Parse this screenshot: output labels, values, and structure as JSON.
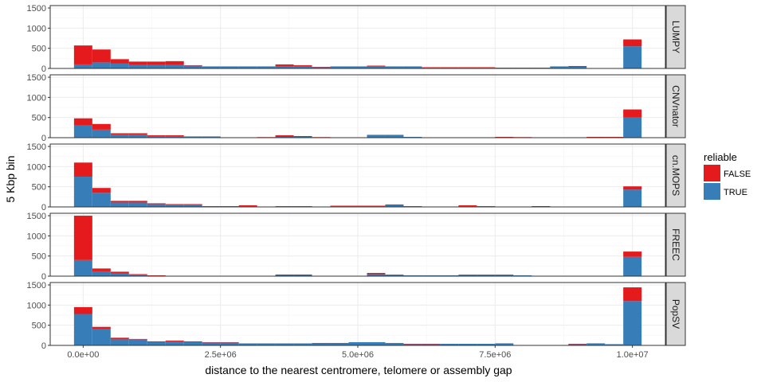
{
  "chart_data": {
    "type": "bar",
    "subtype": "faceted stacked histogram",
    "xlabel": "distance to the nearest centromere, telomere or assembly gap",
    "ylabel": "5 Kbp bin",
    "x_ticks": [
      0,
      2500000,
      5000000,
      7500000,
      10000000
    ],
    "x_tick_labels": [
      "0.0e+00",
      "2.5e+06",
      "5.0e+06",
      "7.5e+06",
      "1.0e+07"
    ],
    "xlim": [
      -600000,
      10600000
    ],
    "ylim": [
      0,
      1560
    ],
    "y_ticks": [
      0,
      500,
      1000,
      1500
    ],
    "y_tick_labels": [
      "0",
      "500",
      "1000",
      "1500"
    ],
    "grid": true,
    "bin_starts": [
      -166667,
      166667,
      500000,
      833333,
      1166667,
      1500000,
      1833333,
      2166667,
      2500000,
      2833333,
      3166667,
      3500000,
      3833333,
      4166667,
      4500000,
      4833333,
      5166667,
      5500000,
      5833333,
      6166667,
      6500000,
      6833333,
      7166667,
      7500000,
      7833333,
      8166667,
      8500000,
      8833333,
      9166667,
      9500000,
      9833333
    ],
    "bin_width": 333333,
    "legend": {
      "title": "reliable",
      "position": "right",
      "entries": [
        {
          "label": "FALSE",
          "color": "#e41a1c"
        },
        {
          "label": "TRUE",
          "color": "#377eb8"
        }
      ]
    },
    "facets": [
      {
        "name": "LUMPY",
        "true_values": [
          100,
          150,
          120,
          90,
          90,
          90,
          70,
          40,
          40,
          40,
          40,
          60,
          60,
          30,
          40,
          40,
          60,
          40,
          40,
          20,
          20,
          20,
          20,
          20,
          20,
          20,
          40,
          40,
          0,
          0,
          550
        ],
        "false_values": [
          470,
          320,
          110,
          80,
          80,
          90,
          10,
          10,
          10,
          10,
          10,
          40,
          20,
          10,
          10,
          10,
          10,
          10,
          10,
          10,
          10,
          10,
          10,
          0,
          0,
          0,
          10,
          20,
          0,
          0,
          170
        ]
      },
      {
        "name": "CNVnator",
        "true_values": [
          300,
          200,
          80,
          80,
          40,
          40,
          20,
          20,
          5,
          5,
          10,
          20,
          20,
          10,
          10,
          10,
          60,
          60,
          20,
          0,
          0,
          0,
          0,
          10,
          10,
          0,
          0,
          5,
          10,
          10,
          500
        ],
        "false_values": [
          180,
          140,
          30,
          30,
          20,
          20,
          10,
          10,
          5,
          5,
          5,
          40,
          20,
          5,
          0,
          0,
          10,
          10,
          0,
          0,
          0,
          0,
          0,
          10,
          5,
          0,
          0,
          5,
          10,
          10,
          200
        ]
      },
      {
        "name": "cn.MOPS",
        "true_values": [
          750,
          350,
          110,
          110,
          70,
          60,
          60,
          20,
          20,
          20,
          10,
          20,
          20,
          10,
          20,
          20,
          20,
          40,
          20,
          10,
          10,
          20,
          20,
          0,
          0,
          10,
          0,
          10,
          10,
          10,
          430
        ],
        "false_values": [
          350,
          120,
          40,
          40,
          20,
          10,
          10,
          0,
          0,
          20,
          0,
          0,
          0,
          0,
          10,
          10,
          10,
          20,
          0,
          0,
          0,
          20,
          0,
          0,
          0,
          10,
          0,
          0,
          0,
          0,
          80
        ]
      },
      {
        "name": "FREEC",
        "true_values": [
          400,
          120,
          70,
          40,
          10,
          10,
          10,
          10,
          10,
          10,
          10,
          20,
          20,
          10,
          10,
          10,
          50,
          40,
          20,
          20,
          20,
          40,
          40,
          40,
          20,
          0,
          0,
          0,
          0,
          0,
          480
        ],
        "false_values": [
          1100,
          70,
          40,
          10,
          10,
          0,
          0,
          0,
          0,
          0,
          0,
          20,
          20,
          0,
          0,
          0,
          30,
          0,
          0,
          0,
          0,
          0,
          0,
          0,
          0,
          0,
          0,
          0,
          0,
          0,
          130
        ]
      },
      {
        "name": "PopSV",
        "true_values": [
          780,
          400,
          150,
          150,
          80,
          100,
          80,
          70,
          70,
          50,
          50,
          50,
          50,
          50,
          50,
          80,
          80,
          60,
          30,
          30,
          40,
          40,
          40,
          40,
          10,
          10,
          10,
          30,
          40,
          30,
          1100
        ],
        "false_values": [
          170,
          60,
          40,
          10,
          20,
          20,
          20,
          10,
          10,
          0,
          0,
          0,
          0,
          10,
          10,
          0,
          0,
          0,
          10,
          10,
          0,
          0,
          0,
          10,
          0,
          0,
          0,
          10,
          10,
          0,
          340
        ]
      }
    ]
  }
}
